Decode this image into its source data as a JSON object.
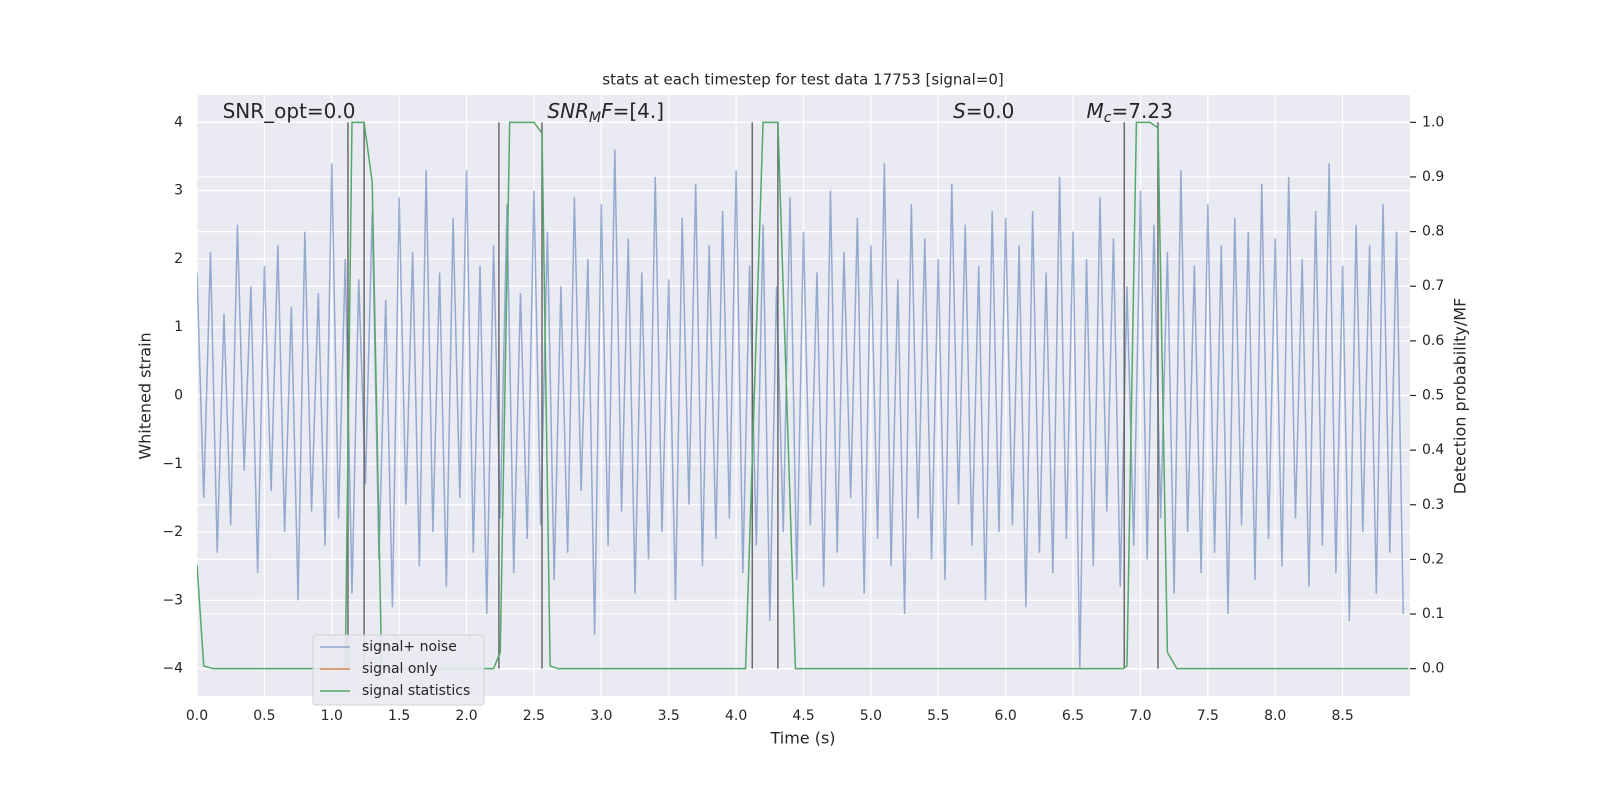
{
  "chart_data": {
    "type": "line",
    "title": "stats at each timestep for test data 17753 [signal=0]",
    "xlabel": "Time (s)",
    "ylabel": "Whitened strain",
    "y2label": "Detection probability/MF",
    "grid": true,
    "xlim": [
      0,
      9.0
    ],
    "ylim": [
      -4.4,
      4.4
    ],
    "y2lim": [
      -0.05,
      1.05
    ],
    "xticks": [
      {
        "value": 0,
        "label": "0.0"
      },
      0.5,
      {
        "value": 1,
        "label": "1.0"
      },
      1.5,
      {
        "value": 2,
        "label": "2.0"
      },
      2.5,
      {
        "value": 3,
        "label": "3.0"
      },
      3.5,
      {
        "value": 4,
        "label": "4.0"
      },
      4.5,
      {
        "value": 5,
        "label": "5.0"
      },
      5.5,
      {
        "value": 6,
        "label": "6.0"
      },
      6.5,
      {
        "value": 7,
        "label": "7.0"
      },
      7.5,
      {
        "value": 8,
        "label": "8.0"
      },
      8.5
    ],
    "yticks": [
      {
        "value": -4,
        "label": "−4"
      },
      {
        "value": -3,
        "label": "−3"
      },
      {
        "value": -2,
        "label": "−2"
      },
      {
        "value": -1,
        "label": "−1"
      },
      0,
      1,
      2,
      3,
      4
    ],
    "y2ticks": [
      {
        "value": 0,
        "label": "0.0"
      },
      0.1,
      0.2,
      0.3,
      0.4,
      0.5,
      0.6,
      0.7,
      0.8,
      0.9,
      {
        "value": 1,
        "label": "1.0"
      }
    ],
    "x": [
      0,
      0.05,
      0.1,
      0.15,
      0.2,
      0.25,
      0.3,
      0.35,
      0.4,
      0.45,
      0.5,
      0.55,
      0.6,
      0.65,
      0.7,
      0.75,
      0.8,
      0.85,
      0.9,
      0.95,
      1,
      1.05,
      1.1,
      1.15,
      1.2,
      1.25,
      1.3,
      1.35,
      1.4,
      1.45,
      1.5,
      1.55,
      1.6,
      1.65,
      1.7,
      1.75,
      1.8,
      1.85,
      1.9,
      1.95,
      2,
      2.05,
      2.1,
      2.15,
      2.2,
      2.25,
      2.3,
      2.35,
      2.4,
      2.45,
      2.5,
      2.55,
      2.6,
      2.65,
      2.7,
      2.75,
      2.8,
      2.85,
      2.9,
      2.95,
      3,
      3.05,
      3.1,
      3.15,
      3.2,
      3.25,
      3.3,
      3.35,
      3.4,
      3.45,
      3.5,
      3.55,
      3.6,
      3.65,
      3.7,
      3.75,
      3.8,
      3.85,
      3.9,
      3.95,
      4,
      4.05,
      4.1,
      4.15,
      4.2,
      4.25,
      4.3,
      4.35,
      4.4,
      4.45,
      4.5,
      4.55,
      4.6,
      4.65,
      4.7,
      4.75,
      4.8,
      4.85,
      4.9,
      4.95,
      5,
      5.05,
      5.1,
      5.15,
      5.2,
      5.25,
      5.3,
      5.35,
      5.4,
      5.45,
      5.5,
      5.55,
      5.6,
      5.65,
      5.7,
      5.75,
      5.8,
      5.85,
      5.9,
      5.95,
      6,
      6.05,
      6.1,
      6.15,
      6.2,
      6.25,
      6.3,
      6.35,
      6.4,
      6.45,
      6.5,
      6.55,
      6.6,
      6.65,
      6.7,
      6.75,
      6.8,
      6.85,
      6.9,
      6.95,
      7,
      7.05,
      7.1,
      7.15,
      7.2,
      7.25,
      7.3,
      7.35,
      7.4,
      7.45,
      7.5,
      7.55,
      7.6,
      7.65,
      7.7,
      7.75,
      7.8,
      7.85,
      7.9,
      7.95,
      8,
      8.05,
      8.1,
      8.15,
      8.2,
      8.25,
      8.3,
      8.35,
      8.4,
      8.45,
      8.5,
      8.55,
      8.6,
      8.65,
      8.7,
      8.75,
      8.8,
      8.85,
      8.9,
      8.95
    ],
    "series": [
      {
        "name": "signal+ noise",
        "color": "#4c72b0",
        "values": [
          1.8,
          -1.5,
          2.1,
          -2.3,
          1.2,
          -1.9,
          2.5,
          -1.1,
          1.6,
          -2.6,
          1.9,
          -1.4,
          2.2,
          -2.0,
          1.3,
          -3.0,
          2.4,
          -1.7,
          1.5,
          -2.2,
          3.4,
          -1.8,
          2.0,
          -2.9,
          1.7,
          -1.3,
          2.7,
          -2.4,
          1.4,
          -3.1,
          2.9,
          -1.6,
          2.1,
          -2.5,
          3.3,
          -2.0,
          1.8,
          -2.8,
          2.6,
          -1.5,
          3.3,
          -2.3,
          1.9,
          -3.2,
          2.2,
          -1.8,
          2.8,
          -2.6,
          1.5,
          -2.1,
          3.0,
          -1.9,
          2.4,
          -2.7,
          1.6,
          -2.3,
          2.9,
          -1.4,
          2.0,
          -3.5,
          2.8,
          -2.2,
          3.6,
          -1.7,
          2.3,
          -2.9,
          1.8,
          -2.4,
          3.2,
          -2.0,
          1.7,
          -3.0,
          2.6,
          -1.6,
          3.1,
          -2.5,
          2.2,
          -2.1,
          2.7,
          -1.8,
          3.3,
          -2.6,
          1.9,
          -2.2,
          2.5,
          -3.3,
          1.6,
          -2.0,
          2.9,
          -2.7,
          2.4,
          -1.9,
          1.8,
          -2.8,
          3.0,
          -2.3,
          2.1,
          -1.5,
          2.6,
          -2.9,
          2.2,
          -2.1,
          3.4,
          -2.5,
          1.7,
          -3.2,
          2.8,
          -1.8,
          2.3,
          -2.4,
          2.0,
          -2.7,
          3.1,
          -1.6,
          2.5,
          -2.2,
          1.9,
          -3.0,
          2.7,
          -2.0,
          2.6,
          -1.9,
          2.2,
          -3.1,
          2.7,
          -2.3,
          1.8,
          -2.6,
          3.2,
          -2.1,
          2.4,
          -4.0,
          2.0,
          -2.5,
          2.9,
          -1.7,
          2.3,
          -2.8,
          1.6,
          -2.2,
          3.0,
          -2.4,
          2.5,
          -1.8,
          2.1,
          -2.9,
          3.3,
          -2.0,
          1.9,
          -2.6,
          2.8,
          -2.3,
          2.2,
          -3.2,
          2.6,
          -1.9,
          2.4,
          -2.7,
          3.1,
          -2.1,
          2.3,
          -2.5,
          3.2,
          -1.8,
          2.0,
          -2.8,
          2.7,
          -2.2,
          3.4,
          -2.6,
          1.9,
          -3.3,
          2.5,
          -2.0,
          2.2,
          -2.9,
          2.8,
          -2.3,
          2.4,
          -3.2
        ]
      },
      {
        "name": "signal only",
        "color": "#dd8452",
        "x": [],
        "values": []
      },
      {
        "name": "signal statistics",
        "color": "#55a868",
        "axis": "y2",
        "x": [
          0,
          0.05,
          0.12,
          1.1,
          1.15,
          1.24,
          1.3,
          1.37,
          2.2,
          2.25,
          2.32,
          2.5,
          2.56,
          2.62,
          2.68,
          4.07,
          4.2,
          4.31,
          4.44,
          6.87,
          6.9,
          6.97,
          7.07,
          7.13,
          7.2,
          7.27,
          8.99
        ],
        "values": [
          0.19,
          0.005,
          0,
          0,
          1.0,
          1.0,
          0.89,
          0,
          0,
          0.03,
          1.0,
          1.0,
          0.98,
          0.005,
          0,
          0,
          1.0,
          1.0,
          0,
          0,
          0.005,
          1.0,
          1.0,
          0.99,
          0.03,
          0,
          0
        ]
      }
    ],
    "vlines": {
      "color": "#555555",
      "x": [
        1.12,
        1.24,
        2.24,
        2.56,
        4.12,
        4.31,
        6.88,
        7.13
      ],
      "ymin": -4,
      "ymax": 4
    },
    "annotations": [
      {
        "x": 0.19,
        "y": 4.15,
        "parts": [
          {
            "text": "SNR_opt=0.0"
          }
        ]
      },
      {
        "x": 2.6,
        "y": 4.15,
        "parts": [
          {
            "text": "SNR",
            "italic": true
          },
          {
            "text": "M",
            "italic": true,
            "sub": true
          },
          {
            "text": "F",
            "italic": true
          },
          {
            "text": "=[4.]"
          }
        ]
      },
      {
        "x": 5.61,
        "y": 4.15,
        "parts": [
          {
            "text": "S",
            "italic": true
          },
          {
            "text": "=0.0"
          }
        ]
      },
      {
        "x": 6.6,
        "y": 4.15,
        "parts": [
          {
            "text": "M",
            "italic": true
          },
          {
            "text": "c",
            "italic": true,
            "sub": true
          },
          {
            "text": "=7.23"
          }
        ]
      }
    ]
  }
}
